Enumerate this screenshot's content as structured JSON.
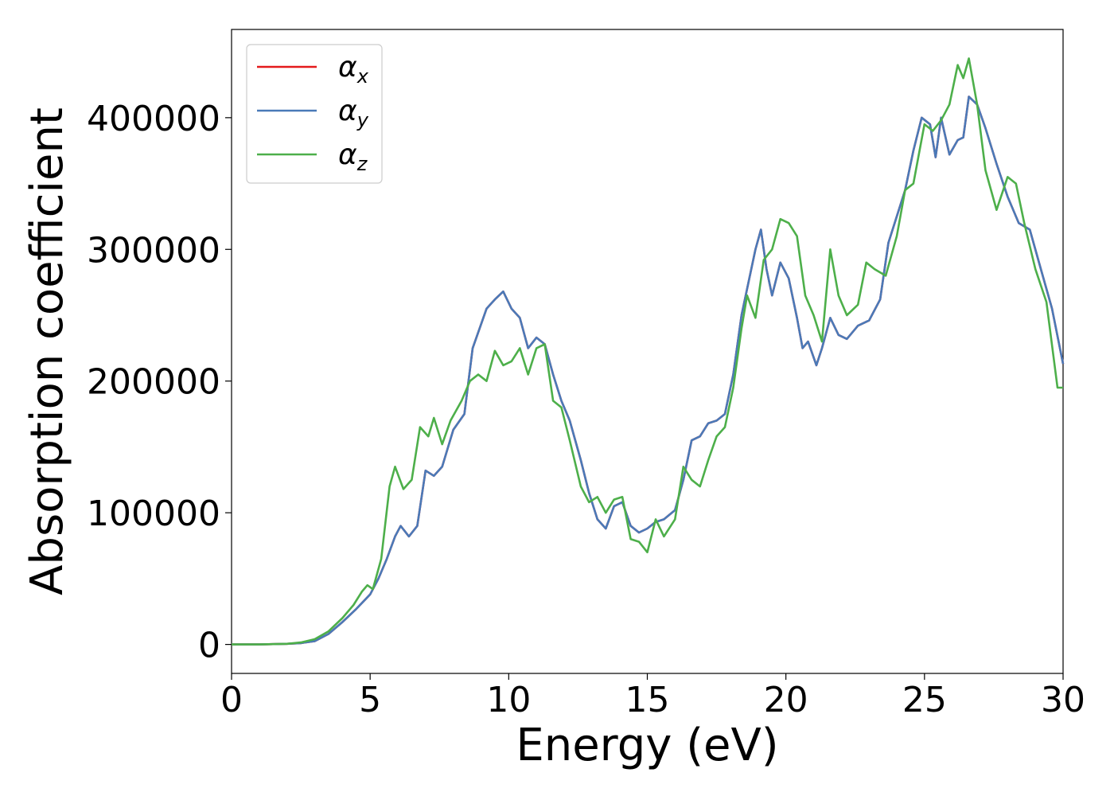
{
  "chart_data": {
    "type": "line",
    "title": "",
    "xlabel": "Energy (eV)",
    "ylabel": "Absorption coefficient",
    "xlim": [
      0,
      30
    ],
    "ylim": [
      -22000,
      467000
    ],
    "xticks": [
      0,
      5,
      10,
      15,
      20,
      25,
      30
    ],
    "xtick_labels": [
      "0",
      "5",
      "10",
      "15",
      "20",
      "25",
      "30"
    ],
    "yticks": [
      0,
      100000,
      200000,
      300000,
      400000
    ],
    "ytick_labels": [
      "0",
      "100000",
      "200000",
      "300000",
      "400000"
    ],
    "grid": false,
    "legend_position": "upper-left",
    "series": [
      {
        "name": "α",
        "subscript": "x",
        "color": "#e41a1c",
        "points": [
          [
            0,
            0
          ],
          [
            1,
            0
          ],
          [
            2,
            500
          ],
          [
            2.5,
            1000
          ],
          [
            3,
            2500
          ],
          [
            3.5,
            8000
          ],
          [
            4,
            17000
          ],
          [
            4.5,
            27000
          ],
          [
            5,
            38000
          ],
          [
            5.3,
            50000
          ],
          [
            5.6,
            65000
          ],
          [
            5.9,
            82000
          ],
          [
            6.1,
            90000
          ],
          [
            6.4,
            82000
          ],
          [
            6.7,
            90000
          ],
          [
            7,
            132000
          ],
          [
            7.3,
            128000
          ],
          [
            7.6,
            135000
          ],
          [
            8,
            163000
          ],
          [
            8.4,
            175000
          ],
          [
            8.7,
            225000
          ],
          [
            9.2,
            255000
          ],
          [
            9.5,
            262000
          ],
          [
            9.8,
            268000
          ],
          [
            10.1,
            255000
          ],
          [
            10.4,
            248000
          ],
          [
            10.7,
            225000
          ],
          [
            11,
            233000
          ],
          [
            11.3,
            228000
          ],
          [
            11.6,
            205000
          ],
          [
            11.9,
            185000
          ],
          [
            12.2,
            170000
          ],
          [
            12.6,
            140000
          ],
          [
            12.9,
            115000
          ],
          [
            13.2,
            95000
          ],
          [
            13.5,
            88000
          ],
          [
            13.8,
            105000
          ],
          [
            14.1,
            108000
          ],
          [
            14.4,
            90000
          ],
          [
            14.7,
            85000
          ],
          [
            15,
            88000
          ],
          [
            15.3,
            93000
          ],
          [
            15.6,
            95000
          ],
          [
            16,
            102000
          ],
          [
            16.3,
            125000
          ],
          [
            16.6,
            155000
          ],
          [
            16.9,
            158000
          ],
          [
            17.2,
            168000
          ],
          [
            17.5,
            170000
          ],
          [
            17.8,
            175000
          ],
          [
            18.1,
            205000
          ],
          [
            18.4,
            250000
          ],
          [
            18.7,
            280000
          ],
          [
            18.9,
            300000
          ],
          [
            19.1,
            315000
          ],
          [
            19.3,
            285000
          ],
          [
            19.5,
            265000
          ],
          [
            19.8,
            290000
          ],
          [
            20.1,
            278000
          ],
          [
            20.4,
            248000
          ],
          [
            20.6,
            225000
          ],
          [
            20.8,
            230000
          ],
          [
            21.1,
            212000
          ],
          [
            21.3,
            225000
          ],
          [
            21.6,
            248000
          ],
          [
            21.9,
            235000
          ],
          [
            22.2,
            232000
          ],
          [
            22.6,
            242000
          ],
          [
            23,
            246000
          ],
          [
            23.4,
            262000
          ],
          [
            23.7,
            305000
          ],
          [
            24,
            325000
          ],
          [
            24.3,
            345000
          ],
          [
            24.6,
            375000
          ],
          [
            24.9,
            400000
          ],
          [
            25.2,
            395000
          ],
          [
            25.4,
            370000
          ],
          [
            25.6,
            400000
          ],
          [
            25.9,
            372000
          ],
          [
            26.2,
            383000
          ],
          [
            26.4,
            385000
          ],
          [
            26.6,
            416000
          ],
          [
            26.9,
            410000
          ],
          [
            27.2,
            392000
          ],
          [
            27.6,
            365000
          ],
          [
            28,
            340000
          ],
          [
            28.4,
            320000
          ],
          [
            28.8,
            315000
          ],
          [
            29.2,
            285000
          ],
          [
            29.6,
            255000
          ],
          [
            30,
            213000
          ]
        ]
      },
      {
        "name": "α",
        "subscript": "y",
        "color": "#4a7ab8",
        "points": [
          [
            0,
            0
          ],
          [
            1,
            0
          ],
          [
            2,
            500
          ],
          [
            2.5,
            1000
          ],
          [
            3,
            2500
          ],
          [
            3.5,
            8000
          ],
          [
            4,
            17000
          ],
          [
            4.5,
            27000
          ],
          [
            5,
            38000
          ],
          [
            5.3,
            50000
          ],
          [
            5.6,
            65000
          ],
          [
            5.9,
            82000
          ],
          [
            6.1,
            90000
          ],
          [
            6.4,
            82000
          ],
          [
            6.7,
            90000
          ],
          [
            7,
            132000
          ],
          [
            7.3,
            128000
          ],
          [
            7.6,
            135000
          ],
          [
            8,
            163000
          ],
          [
            8.4,
            175000
          ],
          [
            8.7,
            225000
          ],
          [
            9.2,
            255000
          ],
          [
            9.5,
            262000
          ],
          [
            9.8,
            268000
          ],
          [
            10.1,
            255000
          ],
          [
            10.4,
            248000
          ],
          [
            10.7,
            225000
          ],
          [
            11,
            233000
          ],
          [
            11.3,
            228000
          ],
          [
            11.6,
            205000
          ],
          [
            11.9,
            185000
          ],
          [
            12.2,
            170000
          ],
          [
            12.6,
            140000
          ],
          [
            12.9,
            115000
          ],
          [
            13.2,
            95000
          ],
          [
            13.5,
            88000
          ],
          [
            13.8,
            105000
          ],
          [
            14.1,
            108000
          ],
          [
            14.4,
            90000
          ],
          [
            14.7,
            85000
          ],
          [
            15,
            88000
          ],
          [
            15.3,
            93000
          ],
          [
            15.6,
            95000
          ],
          [
            16,
            102000
          ],
          [
            16.3,
            125000
          ],
          [
            16.6,
            155000
          ],
          [
            16.9,
            158000
          ],
          [
            17.2,
            168000
          ],
          [
            17.5,
            170000
          ],
          [
            17.8,
            175000
          ],
          [
            18.1,
            205000
          ],
          [
            18.4,
            250000
          ],
          [
            18.7,
            280000
          ],
          [
            18.9,
            300000
          ],
          [
            19.1,
            315000
          ],
          [
            19.3,
            285000
          ],
          [
            19.5,
            265000
          ],
          [
            19.8,
            290000
          ],
          [
            20.1,
            278000
          ],
          [
            20.4,
            248000
          ],
          [
            20.6,
            225000
          ],
          [
            20.8,
            230000
          ],
          [
            21.1,
            212000
          ],
          [
            21.3,
            225000
          ],
          [
            21.6,
            248000
          ],
          [
            21.9,
            235000
          ],
          [
            22.2,
            232000
          ],
          [
            22.6,
            242000
          ],
          [
            23,
            246000
          ],
          [
            23.4,
            262000
          ],
          [
            23.7,
            305000
          ],
          [
            24,
            325000
          ],
          [
            24.3,
            345000
          ],
          [
            24.6,
            375000
          ],
          [
            24.9,
            400000
          ],
          [
            25.2,
            395000
          ],
          [
            25.4,
            370000
          ],
          [
            25.6,
            400000
          ],
          [
            25.9,
            372000
          ],
          [
            26.2,
            383000
          ],
          [
            26.4,
            385000
          ],
          [
            26.6,
            416000
          ],
          [
            26.9,
            410000
          ],
          [
            27.2,
            392000
          ],
          [
            27.6,
            365000
          ],
          [
            28,
            340000
          ],
          [
            28.4,
            320000
          ],
          [
            28.8,
            315000
          ],
          [
            29.2,
            285000
          ],
          [
            29.6,
            255000
          ],
          [
            30,
            213000
          ]
        ]
      },
      {
        "name": "α",
        "subscript": "z",
        "color": "#4daf4a",
        "points": [
          [
            0,
            0
          ],
          [
            1,
            0
          ],
          [
            2,
            500
          ],
          [
            2.5,
            1500
          ],
          [
            3,
            4000
          ],
          [
            3.5,
            10000
          ],
          [
            4,
            20000
          ],
          [
            4.4,
            30000
          ],
          [
            4.7,
            40000
          ],
          [
            4.9,
            45000
          ],
          [
            5.1,
            42000
          ],
          [
            5.4,
            65000
          ],
          [
            5.7,
            120000
          ],
          [
            5.9,
            135000
          ],
          [
            6.2,
            118000
          ],
          [
            6.5,
            125000
          ],
          [
            6.8,
            165000
          ],
          [
            7.1,
            158000
          ],
          [
            7.3,
            172000
          ],
          [
            7.6,
            152000
          ],
          [
            7.9,
            170000
          ],
          [
            8.3,
            185000
          ],
          [
            8.6,
            200000
          ],
          [
            8.9,
            205000
          ],
          [
            9.2,
            200000
          ],
          [
            9.5,
            223000
          ],
          [
            9.8,
            212000
          ],
          [
            10.1,
            215000
          ],
          [
            10.4,
            225000
          ],
          [
            10.7,
            205000
          ],
          [
            11,
            225000
          ],
          [
            11.3,
            228000
          ],
          [
            11.6,
            185000
          ],
          [
            11.9,
            180000
          ],
          [
            12.2,
            155000
          ],
          [
            12.6,
            120000
          ],
          [
            12.9,
            108000
          ],
          [
            13.2,
            112000
          ],
          [
            13.5,
            100000
          ],
          [
            13.8,
            110000
          ],
          [
            14.1,
            112000
          ],
          [
            14.4,
            80000
          ],
          [
            14.7,
            78000
          ],
          [
            15,
            70000
          ],
          [
            15.3,
            95000
          ],
          [
            15.6,
            82000
          ],
          [
            16,
            95000
          ],
          [
            16.3,
            135000
          ],
          [
            16.6,
            125000
          ],
          [
            16.9,
            120000
          ],
          [
            17.2,
            140000
          ],
          [
            17.5,
            158000
          ],
          [
            17.8,
            165000
          ],
          [
            18.1,
            195000
          ],
          [
            18.4,
            240000
          ],
          [
            18.6,
            265000
          ],
          [
            18.9,
            248000
          ],
          [
            19.2,
            292000
          ],
          [
            19.5,
            300000
          ],
          [
            19.8,
            323000
          ],
          [
            20.1,
            320000
          ],
          [
            20.4,
            310000
          ],
          [
            20.7,
            265000
          ],
          [
            21,
            250000
          ],
          [
            21.3,
            230000
          ],
          [
            21.6,
            300000
          ],
          [
            21.9,
            265000
          ],
          [
            22.2,
            250000
          ],
          [
            22.6,
            258000
          ],
          [
            22.9,
            290000
          ],
          [
            23.2,
            285000
          ],
          [
            23.6,
            280000
          ],
          [
            24,
            310000
          ],
          [
            24.3,
            345000
          ],
          [
            24.6,
            350000
          ],
          [
            25,
            395000
          ],
          [
            25.3,
            390000
          ],
          [
            25.6,
            398000
          ],
          [
            25.9,
            410000
          ],
          [
            26.2,
            440000
          ],
          [
            26.4,
            430000
          ],
          [
            26.6,
            445000
          ],
          [
            26.9,
            410000
          ],
          [
            27.2,
            360000
          ],
          [
            27.6,
            330000
          ],
          [
            28,
            355000
          ],
          [
            28.3,
            350000
          ],
          [
            28.6,
            320000
          ],
          [
            29,
            285000
          ],
          [
            29.4,
            260000
          ],
          [
            29.8,
            195000
          ],
          [
            30,
            195000
          ]
        ]
      }
    ]
  }
}
